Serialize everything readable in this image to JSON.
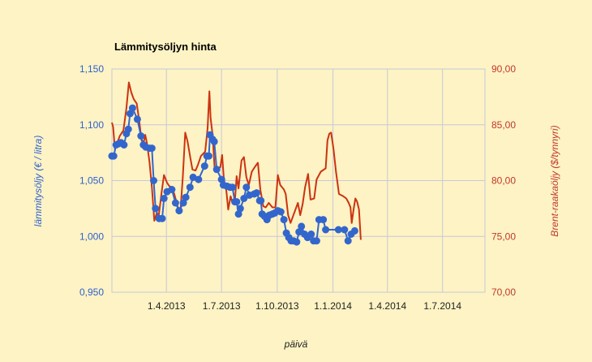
{
  "chart_data": {
    "type": "line",
    "title": "Lämmitysöljyn hinta",
    "xlabel": "päivä",
    "ylabel_left": "lämmitysöljy (€ / litra)",
    "ylabel_right": "Brent-raakaöljy ($/tynnyri)",
    "x_range": [
      "2013-01-01",
      "2014-09-09"
    ],
    "x_ticks": [
      {
        "date": "2013-04-01",
        "label": "1.4.2013"
      },
      {
        "date": "2013-07-01",
        "label": "1.7.2013"
      },
      {
        "date": "2013-10-01",
        "label": "1.10.2013"
      },
      {
        "date": "2014-01-01",
        "label": "1.1.2014"
      },
      {
        "date": "2014-04-01",
        "label": "1.4.2014"
      },
      {
        "date": "2014-07-01",
        "label": "1.7.2014"
      }
    ],
    "ylim_left": [
      0.95,
      1.15
    ],
    "yticks_left": [
      "0,950",
      "1,000",
      "1,050",
      "1,100",
      "1,150"
    ],
    "yticks_left_values": [
      0.95,
      1.0,
      1.05,
      1.1,
      1.15
    ],
    "ylim_right": [
      70,
      90
    ],
    "yticks_right": [
      "70,00",
      "75,00",
      "80,00",
      "85,00",
      "90,00"
    ],
    "yticks_right_values": [
      70,
      75,
      80,
      85,
      90
    ],
    "grid": true,
    "colors": {
      "background": "#fdf3c4",
      "grid": "#c8c8d8",
      "series_left": "#3366cc",
      "series_right": "#cc3311"
    },
    "series": [
      {
        "name": "lämmitysöljy",
        "axis": "left",
        "markers": true,
        "points": [
          [
            "2013-01-01",
            1.072
          ],
          [
            "2013-01-04",
            1.072
          ],
          [
            "2013-01-08",
            1.082
          ],
          [
            "2013-01-12",
            1.083
          ],
          [
            "2013-01-16",
            1.084
          ],
          [
            "2013-01-21",
            1.082
          ],
          [
            "2013-01-25",
            1.092
          ],
          [
            "2013-01-28",
            1.096
          ],
          [
            "2013-01-31",
            1.11
          ],
          [
            "2013-02-04",
            1.115
          ],
          [
            "2013-02-12",
            1.105
          ],
          [
            "2013-02-18",
            1.09
          ],
          [
            "2013-02-22",
            1.082
          ],
          [
            "2013-02-26",
            1.08
          ],
          [
            "2013-03-04",
            1.079
          ],
          [
            "2013-03-08",
            1.079
          ],
          [
            "2013-03-11",
            1.05
          ],
          [
            "2013-03-14",
            1.025
          ],
          [
            "2013-03-20",
            1.016
          ],
          [
            "2013-03-25",
            1.016
          ],
          [
            "2013-03-28",
            1.034
          ],
          [
            "2013-04-02",
            1.04
          ],
          [
            "2013-04-10",
            1.042
          ],
          [
            "2013-04-16",
            1.03
          ],
          [
            "2013-04-22",
            1.023
          ],
          [
            "2013-04-29",
            1.03
          ],
          [
            "2013-05-03",
            1.035
          ],
          [
            "2013-05-10",
            1.044
          ],
          [
            "2013-05-15",
            1.053
          ],
          [
            "2013-05-24",
            1.051
          ],
          [
            "2013-06-03",
            1.063
          ],
          [
            "2013-06-07",
            1.072
          ],
          [
            "2013-06-10",
            1.072
          ],
          [
            "2013-06-12",
            1.091
          ],
          [
            "2013-06-16",
            1.087
          ],
          [
            "2013-06-19",
            1.085
          ],
          [
            "2013-06-23",
            1.06
          ],
          [
            "2013-07-01",
            1.051
          ],
          [
            "2013-07-04",
            1.046
          ],
          [
            "2013-07-10",
            1.045
          ],
          [
            "2013-07-15",
            1.044
          ],
          [
            "2013-07-19",
            1.044
          ],
          [
            "2013-07-23",
            1.031
          ],
          [
            "2013-07-26",
            1.031
          ],
          [
            "2013-07-29",
            1.02
          ],
          [
            "2013-08-01",
            1.025
          ],
          [
            "2013-08-07",
            1.034
          ],
          [
            "2013-08-11",
            1.044
          ],
          [
            "2013-08-16",
            1.037
          ],
          [
            "2013-08-24",
            1.038
          ],
          [
            "2013-08-28",
            1.039
          ],
          [
            "2013-09-02",
            1.032
          ],
          [
            "2013-09-04",
            1.032
          ],
          [
            "2013-09-06",
            1.02
          ],
          [
            "2013-09-10",
            1.018
          ],
          [
            "2013-09-14",
            1.015
          ],
          [
            "2013-09-18",
            1.019
          ],
          [
            "2013-09-23",
            1.02
          ],
          [
            "2013-09-27",
            1.021
          ],
          [
            "2013-10-02",
            1.023
          ],
          [
            "2013-10-07",
            1.022
          ],
          [
            "2013-10-12",
            1.015
          ],
          [
            "2013-10-16",
            1.003
          ],
          [
            "2013-10-20",
            0.999
          ],
          [
            "2013-10-24",
            0.996
          ],
          [
            "2013-10-28",
            0.996
          ],
          [
            "2013-11-02",
            0.995
          ],
          [
            "2013-11-06",
            1.004
          ],
          [
            "2013-11-10",
            1.009
          ],
          [
            "2013-11-15",
            1.002
          ],
          [
            "2013-11-20",
            0.999
          ],
          [
            "2013-11-26",
            1.002
          ],
          [
            "2013-11-30",
            0.996
          ],
          [
            "2013-12-05",
            0.996
          ],
          [
            "2013-12-09",
            1.015
          ],
          [
            "2013-12-16",
            1.015
          ],
          [
            "2013-12-20",
            1.006
          ],
          [
            "2014-01-10",
            1.006
          ],
          [
            "2014-01-20",
            1.006
          ],
          [
            "2014-01-26",
            0.996
          ],
          [
            "2014-01-31",
            1.002
          ],
          [
            "2014-02-06",
            1.005
          ]
        ]
      },
      {
        "name": "Brent-raakaöljy",
        "axis": "right",
        "markers": false,
        "points": [
          [
            "2013-01-01",
            85.2
          ],
          [
            "2013-01-03",
            84.8
          ],
          [
            "2013-01-06",
            82.8
          ],
          [
            "2013-01-10",
            83.4
          ],
          [
            "2013-01-14",
            84.0
          ],
          [
            "2013-01-20",
            84.5
          ],
          [
            "2013-01-25",
            86.5
          ],
          [
            "2013-01-29",
            88.8
          ],
          [
            "2013-02-02",
            87.9
          ],
          [
            "2013-02-06",
            87.3
          ],
          [
            "2013-02-11",
            86.9
          ],
          [
            "2013-02-15",
            85.4
          ],
          [
            "2013-02-19",
            83.6
          ],
          [
            "2013-02-22",
            83.3
          ],
          [
            "2013-02-25",
            84.1
          ],
          [
            "2013-02-28",
            83.3
          ],
          [
            "2013-03-04",
            81.7
          ],
          [
            "2013-03-08",
            79.4
          ],
          [
            "2013-03-12",
            76.4
          ],
          [
            "2013-03-16",
            77.1
          ],
          [
            "2013-03-19",
            76.7
          ],
          [
            "2013-03-24",
            78.9
          ],
          [
            "2013-03-28",
            80.5
          ],
          [
            "2013-04-02",
            79.8
          ],
          [
            "2013-04-06",
            79.5
          ],
          [
            "2013-04-10",
            79.4
          ],
          [
            "2013-04-14",
            78.8
          ],
          [
            "2013-04-20",
            77.6
          ],
          [
            "2013-04-24",
            77.2
          ],
          [
            "2013-04-28",
            80.3
          ],
          [
            "2013-05-02",
            84.3
          ],
          [
            "2013-05-06",
            83.5
          ],
          [
            "2013-05-10",
            82.2
          ],
          [
            "2013-05-14",
            81.0
          ],
          [
            "2013-05-19",
            80.9
          ],
          [
            "2013-05-23",
            81.4
          ],
          [
            "2013-05-28",
            82.2
          ],
          [
            "2013-06-04",
            82.6
          ],
          [
            "2013-06-08",
            84.7
          ],
          [
            "2013-06-11",
            88.0
          ],
          [
            "2013-06-13",
            85.6
          ],
          [
            "2013-06-16",
            84.2
          ],
          [
            "2013-06-20",
            80.8
          ],
          [
            "2013-06-24",
            81.1
          ],
          [
            "2013-06-29",
            81.2
          ],
          [
            "2013-07-02",
            82.3
          ],
          [
            "2013-07-05",
            80.1
          ],
          [
            "2013-07-09",
            79.1
          ],
          [
            "2013-07-12",
            77.4
          ],
          [
            "2013-07-16",
            78.6
          ],
          [
            "2013-07-19",
            78.0
          ],
          [
            "2013-07-23",
            78.1
          ],
          [
            "2013-07-26",
            80.4
          ],
          [
            "2013-07-29",
            79.3
          ],
          [
            "2013-08-03",
            81.8
          ],
          [
            "2013-08-07",
            82.1
          ],
          [
            "2013-08-11",
            80.3
          ],
          [
            "2013-08-15",
            79.6
          ],
          [
            "2013-08-20",
            80.8
          ],
          [
            "2013-08-26",
            81.3
          ],
          [
            "2013-08-30",
            81.6
          ],
          [
            "2013-09-03",
            79.2
          ],
          [
            "2013-09-08",
            77.7
          ],
          [
            "2013-09-12",
            77.6
          ],
          [
            "2013-09-17",
            78.0
          ],
          [
            "2013-09-23",
            77.6
          ],
          [
            "2013-09-28",
            77.6
          ],
          [
            "2013-10-02",
            80.5
          ],
          [
            "2013-10-06",
            79.6
          ],
          [
            "2013-10-12",
            79.2
          ],
          [
            "2013-10-15",
            78.8
          ],
          [
            "2013-10-19",
            76.9
          ],
          [
            "2013-10-23",
            76.2
          ],
          [
            "2013-10-29",
            77.1
          ],
          [
            "2013-11-04",
            78.0
          ],
          [
            "2013-11-08",
            76.9
          ],
          [
            "2013-11-12",
            77.9
          ],
          [
            "2013-11-16",
            79.4
          ],
          [
            "2013-11-21",
            80.6
          ],
          [
            "2013-11-25",
            78.3
          ],
          [
            "2013-12-01",
            78.4
          ],
          [
            "2013-12-05",
            80.1
          ],
          [
            "2013-12-12",
            80.8
          ],
          [
            "2013-12-20",
            81.1
          ],
          [
            "2013-12-23",
            83.6
          ],
          [
            "2013-12-26",
            84.2
          ],
          [
            "2013-12-29",
            84.3
          ],
          [
            "2014-01-02",
            82.8
          ],
          [
            "2014-01-06",
            80.8
          ],
          [
            "2014-01-11",
            78.8
          ],
          [
            "2014-01-18",
            78.6
          ],
          [
            "2014-01-23",
            78.4
          ],
          [
            "2014-01-27",
            78.0
          ],
          [
            "2014-01-30",
            77.6
          ],
          [
            "2014-02-01",
            76.2
          ],
          [
            "2014-02-04",
            77.4
          ],
          [
            "2014-02-07",
            78.4
          ],
          [
            "2014-02-10",
            78.1
          ],
          [
            "2014-02-13",
            77.4
          ],
          [
            "2014-02-16",
            74.7
          ]
        ]
      }
    ]
  }
}
